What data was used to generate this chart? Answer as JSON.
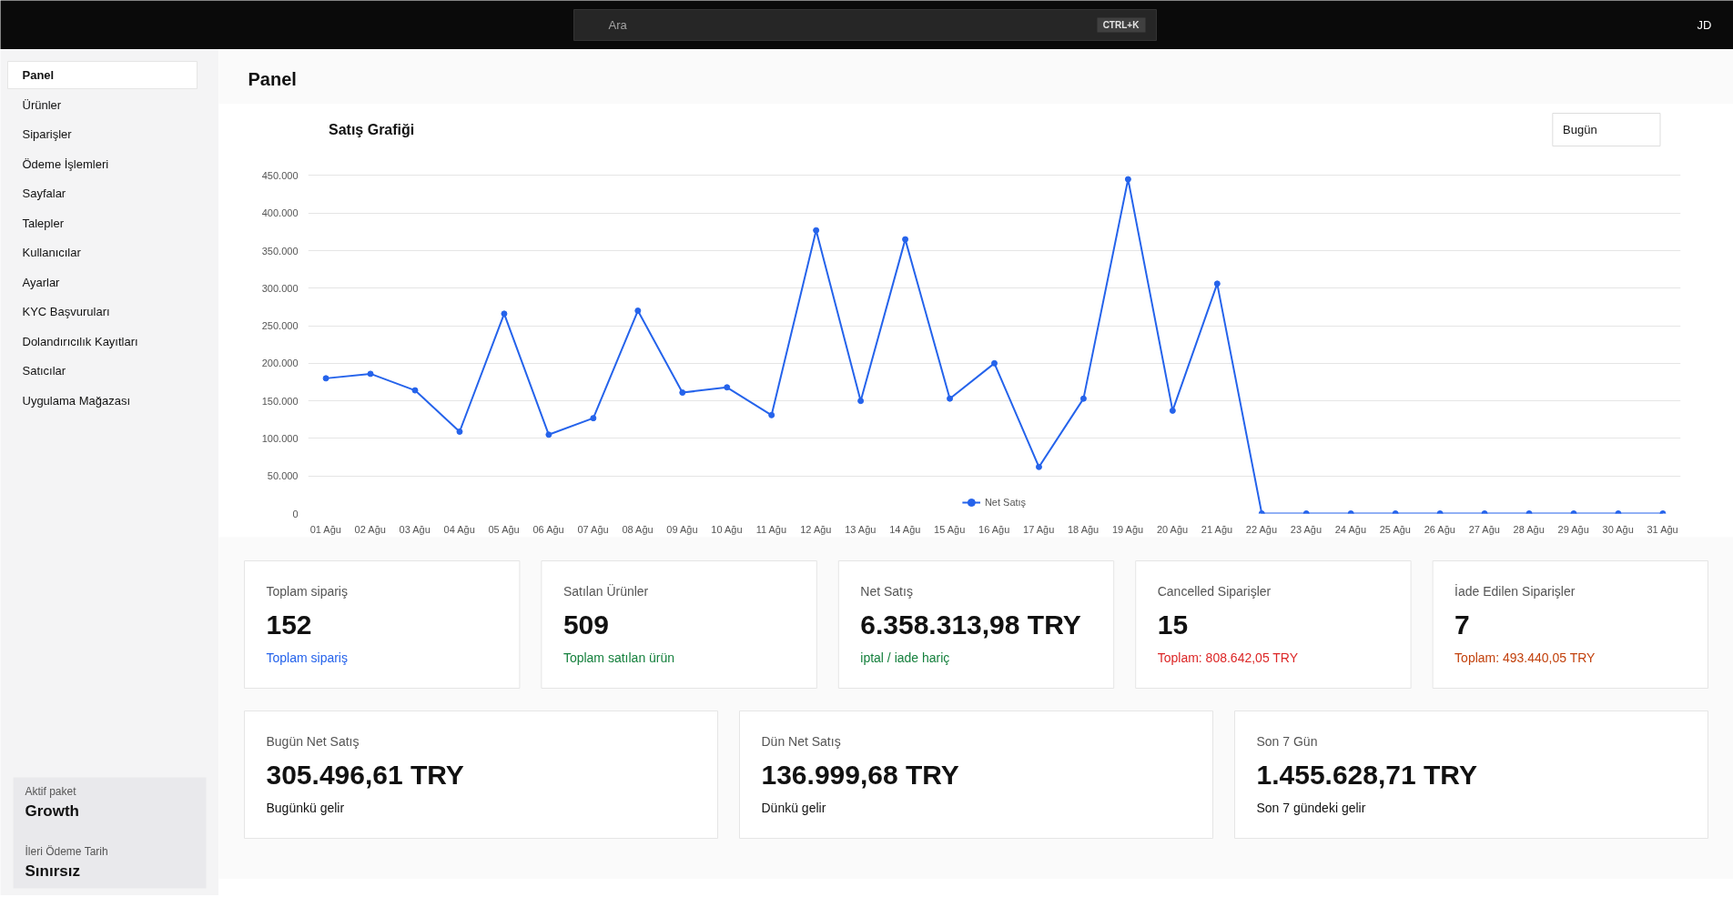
{
  "chart_data": [
    {
      "type": "other",
      "annotations": [
        "Ara",
        "CTRL+K",
        "JD",
        "Panel",
        "Panel",
        "Ürünler",
        "Siparişler",
        "Ödeme İşlemleri",
        "Sayfalar",
        "Talepler",
        "Kullanıcılar",
        "Ayarlar",
        "KYC Başvuruları",
        "Dolandırıcılık Kayıtları",
        "Satıcılar",
        "Uygulama Mağazası",
        "Aktif paket",
        "Growth",
        "İleri Ödeme Tarih",
        "Sınırsız"
      ]
    },
    {
      "type": "line",
      "title": "Satış Grafiği",
      "annotations": [
        "Bugün"
      ],
      "categories": [
        "01 Ağu",
        "02 Ağu",
        "03 Ağu",
        "04 Ağu",
        "05 Ağu",
        "06 Ağu",
        "07 Ağu",
        "08 Ağu",
        "09 Ağu",
        "10 Ağu",
        "11 Ağu",
        "12 Ağu",
        "13 Ağu",
        "14 Ağu",
        "15 Ağu",
        "16 Ağu",
        "17 Ağu",
        "18 Ağu",
        "19 Ağu",
        "20 Ağu",
        "21 Ağu",
        "22 Ağu",
        "23 Ağu",
        "24 Ağu",
        "25 Ağu",
        "26 Ağu",
        "27 Ağu",
        "28 Ağu",
        "29 Ağu",
        "30 Ağu",
        "31 Ağu"
      ],
      "series": [
        {
          "name": "Net Satış",
          "color": "#2563eb",
          "values": [
            180000,
            186000,
            164000,
            109000,
            266000,
            105000,
            127000,
            270000,
            161000,
            168000,
            131000,
            377000,
            150000,
            365000,
            153000,
            200000,
            62000,
            153000,
            445000,
            137000,
            306000,
            0,
            0,
            0,
            0,
            0,
            0,
            0,
            0,
            0,
            0
          ]
        }
      ],
      "ylim": [
        0,
        450000
      ],
      "yticks": [
        0,
        {
          "value": 50000,
          "label": "50.000"
        },
        {
          "value": 100000,
          "label": "100.000"
        },
        {
          "value": 150000,
          "label": "150.000"
        },
        {
          "value": 200000,
          "label": "200.000"
        },
        {
          "value": 250000,
          "label": "250.000"
        },
        {
          "value": 300000,
          "label": "300.000"
        },
        {
          "value": 350000,
          "label": "350.000"
        },
        {
          "value": 400000,
          "label": "400.000"
        },
        {
          "value": 450000,
          "label": "450.000"
        }
      ],
      "grid": "y",
      "legend": "bottom",
      "marker": "circle",
      "line_style": "solid"
    },
    {
      "type": "other",
      "annotations": [
        "Toplam sipariş",
        "152",
        "Toplam sipariş",
        "Satılan Ürünler",
        "509",
        "Toplam satılan ürün",
        "Net Satış",
        "6.358.313,98 TRY",
        "iptal / iade hariç",
        "Cancelled Siparişler",
        "15",
        "Toplam: 808.642,05 TRY",
        "İade Edilen Siparişler",
        "7",
        "Toplam: 493.440,05 TRY",
        "Bugün Net Satış",
        "305.496,61 TRY",
        "Bugünkü gelir",
        "Dün Net Satış",
        "136.999,68 TRY",
        "Dünkü gelir",
        "Son 7 Gün",
        "1.455.628,71 TRY",
        "Son 7 gündeki gelir"
      ]
    }
  ]
}
